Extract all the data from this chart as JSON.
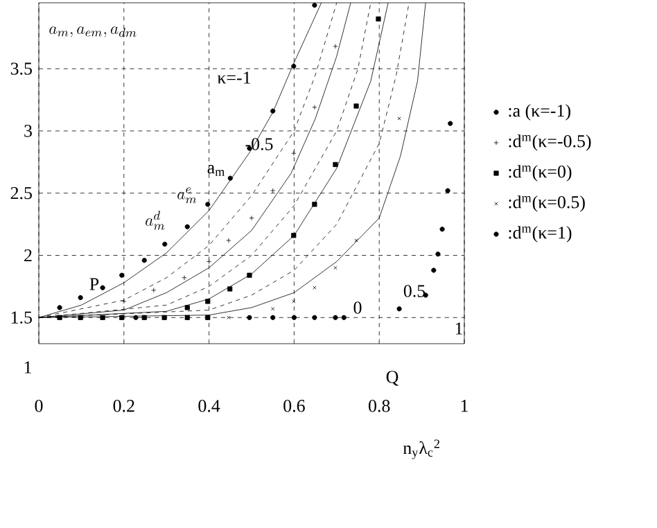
{
  "chart_data": {
    "type": "line",
    "xlabel": "n$_{y}$λ$_{c}$$^{2}$",
    "xlim": [
      0,
      1
    ],
    "ylim": [
      1.29,
      4.03
    ],
    "xticks": [
      0,
      0.2,
      0.4,
      0.6,
      0.8,
      1
    ],
    "yticks": [
      1.5,
      2,
      2.5,
      3,
      3.5
    ],
    "grid": true,
    "legend": "right",
    "series": [
      {
        "type": "line",
        "color": "#000000",
        "line_style": "solid",
        "x": [
          0,
          0.1,
          0.2,
          0.3,
          0.4,
          0.5,
          0.55,
          0.6,
          0.664
        ],
        "values": [
          1.5,
          1.6,
          1.78,
          2.02,
          2.36,
          2.85,
          3.15,
          3.55,
          4.03
        ]
      },
      {
        "type": "line",
        "color": "#000000",
        "line_style": "solid",
        "x": [
          0,
          0.2,
          0.3,
          0.4,
          0.5,
          0.593,
          0.65,
          0.7,
          0.733
        ],
        "values": [
          1.5,
          1.56,
          1.7,
          1.9,
          2.2,
          2.66,
          3.1,
          3.6,
          4.03
        ]
      },
      {
        "type": "line",
        "color": "#000000",
        "line_style": "solid",
        "x": [
          0,
          0.3,
          0.4,
          0.5,
          0.6,
          0.7,
          0.78,
          0.821
        ],
        "values": [
          1.5,
          1.55,
          1.65,
          1.85,
          2.16,
          2.7,
          3.4,
          4.03
        ]
      },
      {
        "type": "line",
        "color": "#000000",
        "line_style": "solid",
        "x": [
          0,
          0.4,
          0.5,
          0.6,
          0.7,
          0.8,
          0.85,
          0.89,
          0.909
        ],
        "values": [
          1.5,
          1.52,
          1.58,
          1.7,
          1.95,
          2.3,
          2.8,
          3.4,
          4.03
        ]
      },
      {
        "type": "line",
        "color": "#000000",
        "line_style": "dashed",
        "x": [
          0,
          0.2,
          0.3,
          0.4,
          0.5,
          0.6,
          0.65,
          0.7
        ],
        "values": [
          1.5,
          1.64,
          1.82,
          2.08,
          2.48,
          3.0,
          3.45,
          4.03
        ]
      },
      {
        "type": "line",
        "color": "#000000",
        "line_style": "dashed",
        "x": [
          0,
          0.3,
          0.4,
          0.5,
          0.6,
          0.7,
          0.75,
          0.78
        ],
        "values": [
          1.5,
          1.6,
          1.75,
          2.0,
          2.4,
          3.0,
          3.5,
          4.03
        ]
      },
      {
        "type": "line",
        "color": "#000000",
        "line_style": "dashed",
        "x": [
          0,
          0.4,
          0.5,
          0.6,
          0.7,
          0.8,
          0.84,
          0.87
        ],
        "values": [
          1.5,
          1.56,
          1.68,
          1.88,
          2.25,
          2.9,
          3.45,
          4.03
        ]
      },
      {
        "type": "scatter",
        "name": ":a (κ=-1)",
        "marker": "circle",
        "color": "#000000",
        "x": [
          0.049,
          0.098,
          0.15,
          0.195,
          0.248,
          0.296,
          0.349,
          0.397,
          0.45,
          0.495,
          0.55,
          0.599,
          0.648
        ],
        "values": [
          1.58,
          1.66,
          1.74,
          1.84,
          1.96,
          2.09,
          2.23,
          2.41,
          2.62,
          2.86,
          3.16,
          3.52,
          4.01
        ]
      },
      {
        "type": "scatter",
        "name": ":d$^{m}$(κ=-0.5)",
        "marker": "plus",
        "color": "#000000",
        "x": [
          0.2,
          0.27,
          0.342,
          0.4,
          0.446,
          0.5,
          0.55,
          0.599,
          0.648,
          0.697
        ],
        "values": [
          1.63,
          1.72,
          1.82,
          1.95,
          2.12,
          2.3,
          2.52,
          2.82,
          3.19,
          3.68
        ]
      },
      {
        "type": "scatter",
        "name": ":d$^{m}$(κ=0)",
        "marker": "square",
        "color": "#000000",
        "x": [
          0.295,
          0.349,
          0.397,
          0.449,
          0.495,
          0.599,
          0.648,
          0.697,
          0.746,
          0.798
        ],
        "values": [
          1.5,
          1.58,
          1.63,
          1.73,
          1.84,
          2.16,
          2.41,
          2.73,
          3.2,
          3.9
        ]
      },
      {
        "type": "scatter",
        "name": ":d$^{m}$(κ=0.5)",
        "marker": "cross",
        "color": "#000000",
        "x": [
          0.446,
          0.495,
          0.55,
          0.599,
          0.648,
          0.697,
          0.746,
          0.847
        ],
        "values": [
          1.5,
          null,
          1.57,
          1.63,
          1.74,
          1.9,
          2.12,
          3.1
        ]
      },
      {
        "type": "scatter",
        "name": ":d$^{m}$(κ=1)",
        "marker": "circle",
        "color": "#000000",
        "x": [
          0.495,
          0.55,
          0.6,
          0.648,
          0.697,
          0.847,
          0.909,
          0.928,
          0.938,
          0.948,
          0.961,
          0.967
        ],
        "values": [
          1.5,
          1.5,
          1.5,
          1.5,
          1.5,
          1.57,
          1.68,
          1.88,
          2.01,
          2.21,
          2.52,
          3.06
        ]
      },
      {
        "type": "scatter",
        "marker": "square",
        "color": "#000000",
        "x": [
          0.049,
          0.098,
          0.15,
          0.195,
          0.248,
          0.349,
          0.397
        ],
        "values": [
          1.5,
          1.5,
          1.5,
          1.5,
          1.5,
          1.5,
          1.5
        ]
      },
      {
        "type": "scatter",
        "marker": "circle",
        "color": "#000000",
        "x": [
          0.228,
          0.717
        ],
        "values": [
          1.5,
          1.5
        ]
      }
    ],
    "annotations": [
      "a_{m}, a_{em}, a_{dm}",
      "1",
      "Q",
      "a^{e}_{m}",
      "a^{d}_{m}",
      "κ=-1",
      "-0.5",
      "a$_{m}$",
      "P",
      "0",
      "0.5",
      "1"
    ]
  }
}
